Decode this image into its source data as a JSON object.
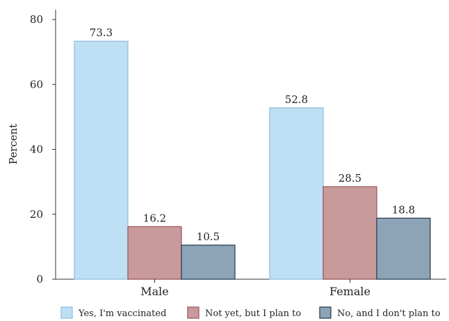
{
  "chart_data": {
    "type": "bar",
    "title": "",
    "xlabel": "",
    "ylabel": "Percent",
    "ylim": [
      0,
      80
    ],
    "yticks": [
      0,
      20,
      40,
      60,
      80
    ],
    "grid": false,
    "legend_position": "bottom",
    "categories": [
      "Male",
      "Female"
    ],
    "series": [
      {
        "name": "Yes, I'm vaccinated",
        "values": [
          73.3,
          52.8
        ],
        "color": "#bfdff4",
        "stroke": "#8fc1e3"
      },
      {
        "name": "Not yet, but I plan to",
        "values": [
          16.2,
          28.5
        ],
        "color": "#c99a9b",
        "stroke": "#9b5a60"
      },
      {
        "name": "No, and I don't plan to",
        "values": [
          10.5,
          18.8
        ],
        "color": "#8da3b6",
        "stroke": "#2d4257"
      }
    ],
    "data_labels": [
      [
        "73.3",
        "52.8"
      ],
      [
        "16.2",
        "28.5"
      ],
      [
        "10.5",
        "18.8"
      ]
    ]
  }
}
